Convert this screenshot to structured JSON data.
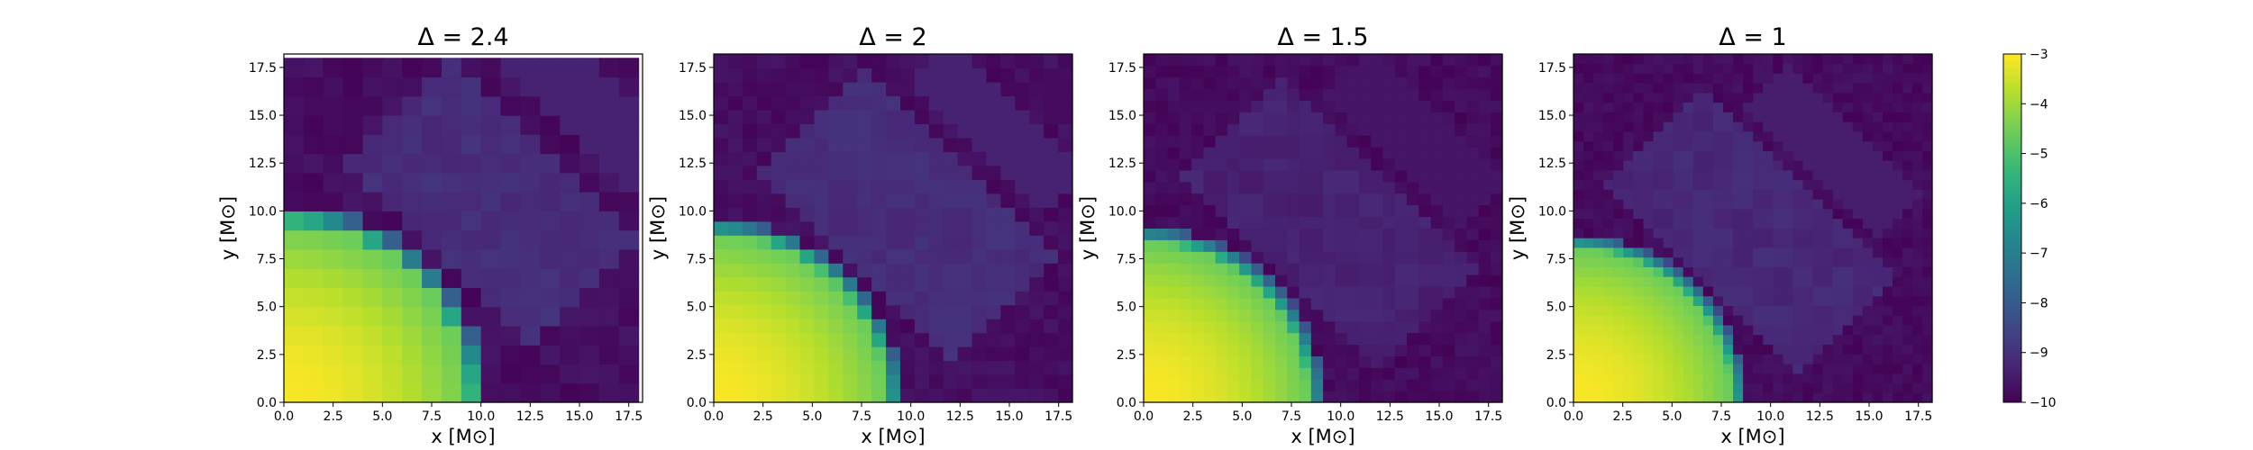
{
  "chart_data": [
    {
      "type": "heatmap",
      "title": "Δ = 2.4",
      "xlabel": "x [M⊙]",
      "ylabel": "y [M⊙]",
      "xlim": [
        0,
        18.2
      ],
      "ylim": [
        0,
        18.2
      ],
      "xticks": [
        "0.0",
        "2.5",
        "5.0",
        "7.5",
        "10.0",
        "12.5",
        "15.0",
        "17.5"
      ],
      "yticks": [
        "0.0",
        "2.5",
        "5.0",
        "7.5",
        "10.0",
        "12.5",
        "15.0",
        "17.5"
      ],
      "grid_n": 18,
      "cell_size": 1.0,
      "core_radius": 10.3,
      "core_edge_value": -4.6,
      "core_center_value": -3.05,
      "edge_width": 1.0,
      "background_value": -9.75,
      "diagonal_band_value": -9.1,
      "grid": false
    },
    {
      "type": "heatmap",
      "title": "Δ = 2",
      "xlabel": "x [M⊙]",
      "ylabel": "y [M⊙]",
      "xlim": [
        0,
        18.2
      ],
      "ylim": [
        0,
        18.2
      ],
      "xticks": [
        "0.0",
        "2.5",
        "5.0",
        "7.5",
        "10.0",
        "12.5",
        "15.0",
        "17.5"
      ],
      "yticks": [
        "0.0",
        "2.5",
        "5.0",
        "7.5",
        "10.0",
        "12.5",
        "15.0",
        "17.5"
      ],
      "grid_n": 25,
      "cell_size": 0.728,
      "core_radius": 9.6,
      "core_edge_value": -4.6,
      "core_center_value": -3.05,
      "edge_width": 0.9,
      "background_value": -9.75,
      "diagonal_band_value": -9.1,
      "grid": false
    },
    {
      "type": "heatmap",
      "title": "Δ = 1.5",
      "xlabel": "x [M⊙]",
      "ylabel": "y [M⊙]",
      "xlim": [
        0,
        18.2
      ],
      "ylim": [
        0,
        18.2
      ],
      "xticks": [
        "0.0",
        "2.5",
        "5.0",
        "7.5",
        "10.0",
        "12.5",
        "15.0",
        "17.5"
      ],
      "yticks": [
        "0.0",
        "2.5",
        "5.0",
        "7.5",
        "10.0",
        "12.5",
        "15.0",
        "17.5"
      ],
      "grid_n": 30,
      "cell_size": 0.607,
      "core_radius": 9.2,
      "core_edge_value": -4.6,
      "core_center_value": -3.05,
      "edge_width": 0.9,
      "background_value": -9.8,
      "diagonal_band_value": -9.35,
      "grid": false
    },
    {
      "type": "heatmap",
      "title": "Δ = 1",
      "xlabel": "x [M⊙]",
      "ylabel": "y [M⊙]",
      "xlim": [
        0,
        18.2
      ],
      "ylim": [
        0,
        18.2
      ],
      "xticks": [
        "0.0",
        "2.5",
        "5.0",
        "7.5",
        "10.0",
        "12.5",
        "15.0",
        "17.5"
      ],
      "yticks": [
        "0.0",
        "2.5",
        "5.0",
        "7.5",
        "10.0",
        "12.5",
        "15.0",
        "17.5"
      ],
      "grid_n": 36,
      "cell_size": 0.506,
      "core_radius": 8.8,
      "core_edge_value": -4.6,
      "core_center_value": -3.05,
      "edge_width": 0.8,
      "background_value": -9.8,
      "diagonal_band_value": -9.2,
      "grid": false
    }
  ],
  "colorbar": {
    "colormap": "viridis",
    "vmin": -10,
    "vmax": -3,
    "ticks": [
      "−3",
      "−4",
      "−5",
      "−6",
      "−7",
      "−8",
      "−9",
      "−10"
    ]
  }
}
